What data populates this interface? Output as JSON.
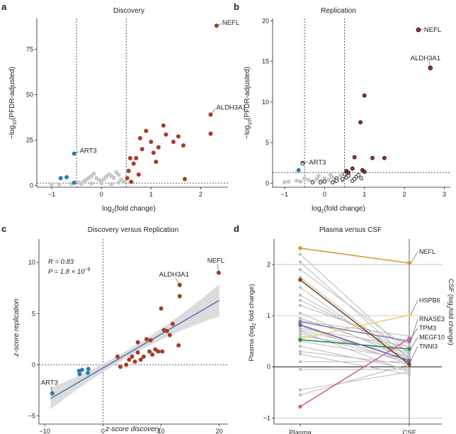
{
  "colors": {
    "red": "#a83a2b",
    "blue": "#2b7fb0",
    "grey": "#c9c9c9",
    "dark_red": "#5a1010",
    "ci_band": "#d6d6d6",
    "reg_line": "#3f66b0",
    "axis": "#222222"
  },
  "chart_data": [
    {
      "panel": "a",
      "type": "scatter",
      "title": "Discovery",
      "xlabel": "log2(fold change)",
      "ylabel": "-log10(PFDR-adjusted)",
      "xlim": [
        -1.3,
        2.55
      ],
      "ylim": [
        -1,
        92
      ],
      "xticks": [
        -1,
        0,
        1,
        2
      ],
      "yticks": [
        0,
        25,
        50,
        75
      ],
      "vlines": [
        -0.5,
        0.5
      ],
      "hline": 1.3,
      "points_grey": [
        [
          -1.0,
          0.5
        ],
        [
          -0.85,
          0.6
        ],
        [
          -0.6,
          0.8
        ],
        [
          -0.45,
          1.6
        ],
        [
          -0.35,
          2.2
        ],
        [
          -0.3,
          3.3
        ],
        [
          -0.25,
          4.2
        ],
        [
          -0.2,
          5.2
        ],
        [
          -0.15,
          6.5
        ],
        [
          -0.1,
          4.1
        ],
        [
          -0.05,
          3.0
        ],
        [
          0.0,
          2.6
        ],
        [
          0.05,
          3.5
        ],
        [
          0.1,
          4.8
        ],
        [
          0.15,
          6.0
        ],
        [
          0.2,
          5.3
        ],
        [
          0.25,
          4.2
        ],
        [
          0.3,
          7.2
        ],
        [
          0.35,
          5.8
        ],
        [
          0.4,
          3.2
        ],
        [
          0.45,
          2.0
        ],
        [
          -0.4,
          0.9
        ],
        [
          0.0,
          1.2
        ],
        [
          0.2,
          0.7
        ],
        [
          -0.2,
          1.1
        ],
        [
          0.35,
          1.6
        ]
      ],
      "points_red": [
        [
          0.55,
          8
        ],
        [
          0.6,
          2
        ],
        [
          0.65,
          12
        ],
        [
          0.7,
          15
        ],
        [
          0.78,
          26
        ],
        [
          0.82,
          20
        ],
        [
          0.9,
          30
        ],
        [
          1.0,
          24
        ],
        [
          1.05,
          18
        ],
        [
          1.15,
          21
        ],
        [
          1.25,
          33
        ],
        [
          1.3,
          28
        ],
        [
          1.45,
          24
        ],
        [
          1.55,
          27
        ],
        [
          1.65,
          22
        ],
        [
          1.68,
          3.5
        ],
        [
          1.1,
          13
        ],
        [
          0.75,
          6
        ],
        [
          0.52,
          4
        ],
        [
          0.58,
          15
        ],
        [
          2.2,
          28.5
        ]
      ],
      "points_blue": [
        [
          -0.55,
          1.5
        ],
        [
          -0.82,
          4
        ],
        [
          -0.7,
          4.5
        ]
      ],
      "labeled": [
        {
          "name": "NEFL",
          "x": 2.32,
          "y": 88,
          "color": "red"
        },
        {
          "name": "ALDH3A1",
          "x": 2.2,
          "y": 39,
          "color": "red"
        },
        {
          "name": "ART3",
          "x": -0.55,
          "y": 17.5,
          "color": "blue"
        }
      ]
    },
    {
      "panel": "b",
      "type": "scatter",
      "title": "Replication",
      "xlabel": "log2(fold change)",
      "ylabel": "-log10(PFDR-adjusted)",
      "xlim": [
        -1.3,
        3.15
      ],
      "ylim": [
        -0.5,
        20.3
      ],
      "xticks": [
        -1,
        0,
        1,
        2,
        3
      ],
      "yticks": [
        0,
        5,
        10,
        15,
        20
      ],
      "vlines": [
        -0.5,
        0.5
      ],
      "hline": 1.3,
      "points_grey": [
        [
          -1.0,
          0.1
        ],
        [
          -0.9,
          0.2
        ],
        [
          -0.7,
          0.3
        ],
        [
          -0.6,
          0.2
        ],
        [
          -0.4,
          0.4
        ],
        [
          -0.3,
          0.2
        ],
        [
          -0.2,
          0.5
        ],
        [
          -0.1,
          0.3
        ],
        [
          0.0,
          0.6
        ],
        [
          0.1,
          0.4
        ],
        [
          0.2,
          0.7
        ],
        [
          0.3,
          0.5
        ],
        [
          0.4,
          0.9
        ],
        [
          0.45,
          0.3
        ],
        [
          -0.15,
          0.9
        ],
        [
          0.15,
          1.0
        ],
        [
          0.25,
          0.2
        ],
        [
          -0.5,
          0.6
        ]
      ],
      "points_open": [
        [
          -0.3,
          0.1
        ],
        [
          0.0,
          0.2
        ],
        [
          0.2,
          0.1
        ],
        [
          0.3,
          0.6
        ],
        [
          0.45,
          0.5
        ],
        [
          0.55,
          0.7
        ],
        [
          0.6,
          0.9
        ],
        [
          0.7,
          0.3
        ],
        [
          0.8,
          0.8
        ],
        [
          0.85,
          1.0
        ],
        [
          0.5,
          1.1
        ],
        [
          0.75,
          0.5
        ],
        [
          0.3,
          0.3
        ],
        [
          -0.55,
          2.5
        ],
        [
          -0.1,
          0.1
        ],
        [
          0.92,
          0.6
        ]
      ],
      "points_darkred": [
        [
          0.55,
          1.5
        ],
        [
          0.7,
          1.8
        ],
        [
          0.75,
          3.2
        ],
        [
          0.9,
          7.5
        ],
        [
          0.95,
          1.6
        ],
        [
          1.0,
          10.8
        ],
        [
          1.0,
          1.4
        ],
        [
          1.2,
          3.1
        ],
        [
          1.5,
          3.1
        ],
        [
          0.6,
          1.3
        ]
      ],
      "points_blue": [
        [
          -0.65,
          1.6
        ]
      ],
      "labeled": [
        {
          "name": "NEFL",
          "x": 2.35,
          "y": 18.9,
          "color": "dark_red"
        },
        {
          "name": "ALDH3A1",
          "x": 2.65,
          "y": 14.2,
          "color": "dark_red"
        },
        {
          "name": "ART3",
          "x": -0.55,
          "y": 2.4,
          "color": "open"
        }
      ]
    },
    {
      "panel": "c",
      "type": "scatter",
      "title": "Discovery versus Replication",
      "xlabel": "z-score discovery",
      "ylabel": "z-score replication",
      "xlim": [
        -11,
        21.5
      ],
      "ylim": [
        -5.8,
        12.3
      ],
      "xticks": [
        -10,
        0,
        10,
        20
      ],
      "yticks": [
        -5,
        0,
        5,
        10
      ],
      "stats_r": "R = 0.83",
      "stats_p": "P = 1.8 × 10",
      "stats_p_exp": "−9",
      "regression": {
        "x0": -9,
        "y0": -3.3,
        "x1": 20,
        "y1": 6.3
      },
      "points_red": [
        [
          2.5,
          0.8
        ],
        [
          3,
          -0.2
        ],
        [
          4,
          0
        ],
        [
          4.5,
          0.5
        ],
        [
          5,
          0.8
        ],
        [
          5.5,
          0.3
        ],
        [
          6,
          1.2
        ],
        [
          6.5,
          0.5
        ],
        [
          7,
          0.8
        ],
        [
          7.5,
          2.5
        ],
        [
          8,
          1.3
        ],
        [
          8.5,
          1
        ],
        [
          9,
          1.5
        ],
        [
          9.5,
          1.3
        ],
        [
          10,
          5.5
        ],
        [
          10.2,
          1.3
        ],
        [
          10.5,
          3.4
        ],
        [
          11,
          3.3
        ],
        [
          11.5,
          2.9
        ],
        [
          12,
          4
        ],
        [
          13,
          1.9
        ],
        [
          13.2,
          6.7
        ],
        [
          8.2,
          2.4
        ],
        [
          6,
          2.2
        ]
      ],
      "points_blue": [
        [
          -4.1,
          -0.6
        ],
        [
          -4.0,
          -0.9
        ],
        [
          -3.6,
          -0.5
        ],
        [
          -2.5,
          -0.4
        ],
        [
          -2.6,
          -0.8
        ]
      ],
      "labeled": [
        {
          "name": "NEFL",
          "x": 19.9,
          "y": 9.0,
          "color": "red"
        },
        {
          "name": "ALDH3A1",
          "x": 13.2,
          "y": 7.8,
          "color": "red"
        },
        {
          "name": "ART3",
          "x": -8.7,
          "y": -2.8,
          "color": "blue"
        }
      ]
    },
    {
      "panel": "d",
      "type": "line",
      "title": "Plasma versus CSF",
      "categories": [
        "Plasma",
        "CSF"
      ],
      "ylabel_left": "Plasma (log2 fold change)",
      "ylabel_right": "CSF (log2 fold change)",
      "ylim": [
        -1.12,
        2.5
      ],
      "yticks": [
        -1,
        0,
        1,
        2
      ],
      "series_grey": [
        [
          2.2,
          0.25
        ],
        [
          2.05,
          0.15
        ],
        [
          1.9,
          0.35
        ],
        [
          1.75,
          0.1
        ],
        [
          1.55,
          0.05
        ],
        [
          1.4,
          0.2
        ],
        [
          1.3,
          0.3
        ],
        [
          1.2,
          0.45
        ],
        [
          1.05,
          0.15
        ],
        [
          0.95,
          0.25
        ],
        [
          0.9,
          0.6
        ],
        [
          0.8,
          0.05
        ],
        [
          0.75,
          0.4
        ],
        [
          0.72,
          0.2
        ],
        [
          0.7,
          -0.1
        ],
        [
          0.65,
          0.1
        ],
        [
          0.6,
          0.3
        ],
        [
          0.5,
          0.15
        ],
        [
          0.4,
          -0.05
        ],
        [
          0.3,
          0.05
        ],
        [
          0.25,
          -0.15
        ],
        [
          0.1,
          0.1
        ],
        [
          -0.05,
          -0.05
        ],
        [
          -0.45,
          -0.1
        ],
        [
          -0.55,
          0.05
        ]
      ],
      "series": [
        {
          "name": "NEFL",
          "plasma": 2.32,
          "csf": 2.03,
          "color": "#d89a3d"
        },
        {
          "name": "HSPB6",
          "plasma": 0.55,
          "csf": 1.01,
          "color": "#f0d27a"
        },
        {
          "name": "RNASE3",
          "plasma": 0.88,
          "csf": 0.5,
          "color": "#8a7fb5"
        },
        {
          "name": "TPM3",
          "plasma": -0.78,
          "csf": 0.55,
          "color": "#d65fa0"
        },
        {
          "name": "MEGF10",
          "plasma": 0.53,
          "csf": 0.35,
          "color": "#2e8b57"
        },
        {
          "name": "TNNI3",
          "plasma": 0.82,
          "csf": 0.12,
          "color": "#6b63a8"
        },
        {
          "name": "",
          "plasma": 1.7,
          "csf": 0.05,
          "color": "#7a4a22"
        }
      ]
    }
  ],
  "panel_letters": {
    "a": "a",
    "b": "b",
    "c": "c",
    "d": "d"
  }
}
